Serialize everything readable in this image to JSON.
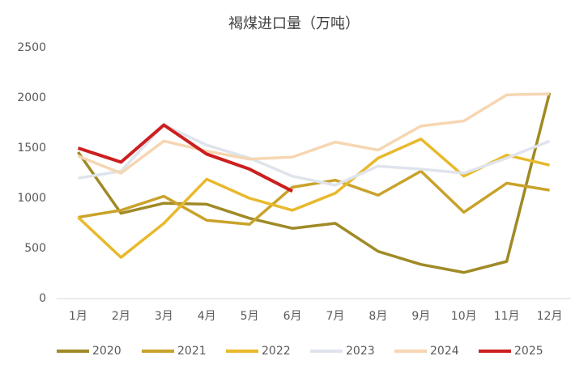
{
  "chart_data": {
    "type": "line",
    "title": "褐煤进口量（万吨）",
    "categories": [
      "1月",
      "2月",
      "3月",
      "4月",
      "5月",
      "6月",
      "7月",
      "8月",
      "9月",
      "10月",
      "11月",
      "12月"
    ],
    "series": [
      {
        "name": "2020",
        "color": "#a08a26",
        "values": [
          1460,
          850,
          950,
          940,
          800,
          700,
          750,
          470,
          340,
          260,
          370,
          2050
        ]
      },
      {
        "name": "2021",
        "color": "#c9a22a",
        "values": [
          810,
          880,
          1020,
          780,
          740,
          1110,
          1180,
          1030,
          1270,
          860,
          1150,
          1080
        ]
      },
      {
        "name": "2022",
        "color": "#e8b92c",
        "values": [
          810,
          410,
          750,
          1190,
          1000,
          880,
          1050,
          1400,
          1590,
          1220,
          1430,
          1330
        ]
      },
      {
        "name": "2023",
        "color": "#dfe4ec",
        "values": [
          1200,
          1270,
          1730,
          1530,
          1400,
          1220,
          1130,
          1320,
          1290,
          1250,
          1400,
          1570
        ]
      },
      {
        "name": "2024",
        "color": "#f6d6b2",
        "values": [
          1420,
          1250,
          1570,
          1470,
          1390,
          1410,
          1560,
          1480,
          1720,
          1770,
          2030,
          2040
        ]
      },
      {
        "name": "2025",
        "color": "#cc1f1f",
        "values": [
          1500,
          1360,
          1730,
          1440,
          1290,
          1070,
          null,
          null,
          null,
          null,
          null,
          null
        ]
      }
    ],
    "ylim": [
      0,
      2500
    ],
    "yticks": [
      0,
      500,
      1000,
      1500,
      2000,
      2500
    ],
    "grid": false,
    "legend": "bottom"
  }
}
